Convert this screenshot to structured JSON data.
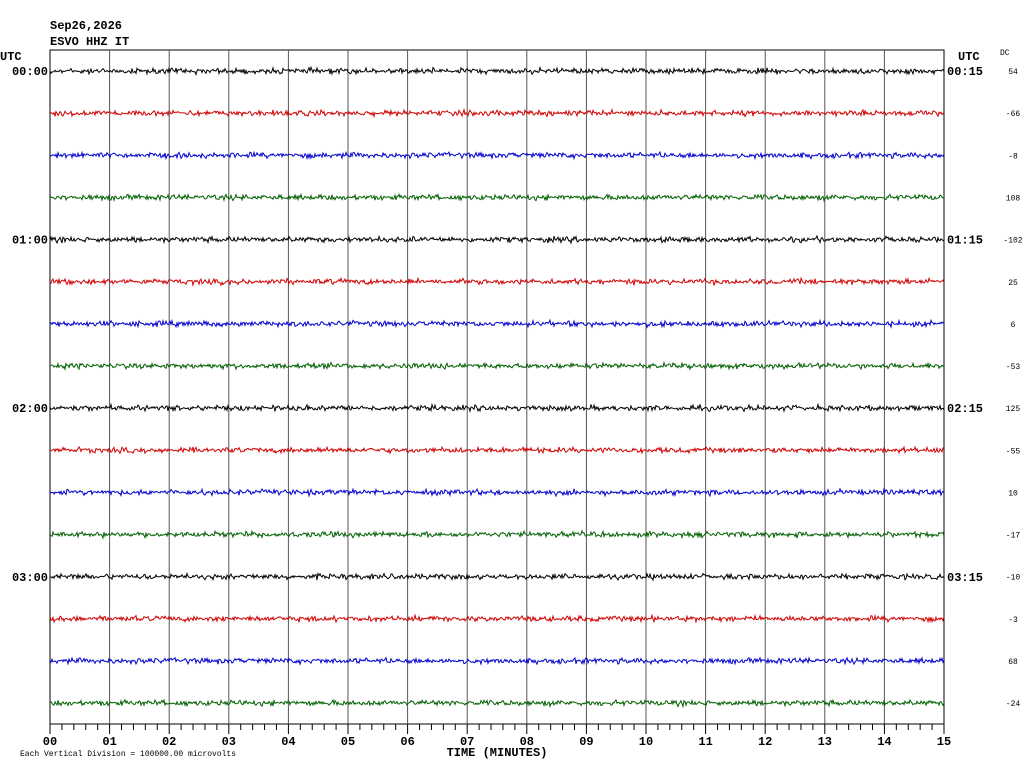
{
  "header": {
    "date": "Sep26,2026",
    "station": "ESVO HHZ IT"
  },
  "left_axis": {
    "label": "UTC",
    "times": [
      "00:00",
      "01:00",
      "02:00",
      "03:00"
    ]
  },
  "right_axis": {
    "label": "UTC",
    "times": [
      "00:15",
      "01:15",
      "02:15",
      "03:15"
    ]
  },
  "dc": {
    "label": "DC",
    "values": [
      "54",
      "-66",
      "-8",
      "108",
      "-102",
      "25",
      "6",
      "-53",
      "125",
      "-55",
      "10",
      "-17",
      "-10",
      "-3",
      "68",
      "-24"
    ]
  },
  "x_axis": {
    "ticks": [
      "00",
      "01",
      "02",
      "03",
      "04",
      "05",
      "06",
      "07",
      "08",
      "09",
      "10",
      "11",
      "12",
      "13",
      "14",
      "15"
    ],
    "label": "TIME (MINUTES)"
  },
  "footer": "Each Vertical Division = 100000.00 microvolts"
}
